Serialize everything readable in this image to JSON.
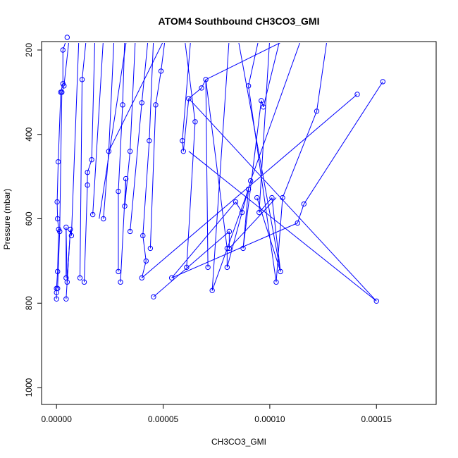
{
  "chart_data": {
    "type": "line",
    "title": "ATOM4 Southbound CH3CO3_GMI",
    "xlabel": "CH3CO3_GMI",
    "ylabel": "Pressure (mbar)",
    "xlim": [
      -7e-06,
      0.000178
    ],
    "ylim": [
      1040,
      180
    ],
    "y_reversed": true,
    "x_ticks": [
      0,
      5e-05,
      0.0001,
      0.00015
    ],
    "x_tick_labels": [
      "0.00000",
      "0.00005",
      "0.00010",
      "0.00015"
    ],
    "y_ticks": [
      200,
      400,
      600,
      800,
      1000
    ],
    "y_tick_labels": [
      "200",
      "400",
      "600",
      "800",
      "1000"
    ],
    "grid": false,
    "legend": "none",
    "series": [
      {
        "color": "#0000ff",
        "marker": "open-circle",
        "points": [
          [
            0.0,
            790
          ],
          [
            0.0,
            775
          ],
          [
            0.0,
            765
          ],
          [
            5e-07,
            725
          ],
          [
            1e-06,
            625
          ],
          [
            5e-07,
            600
          ],
          [
            3e-07,
            560
          ],
          [
            8e-07,
            465
          ],
          [
            2e-06,
            300
          ],
          [
            3e-06,
            280
          ],
          [
            3e-06,
            200
          ],
          [
            5e-06,
            170
          ],
          [
            5e-07,
            765
          ],
          [
            1.5e-06,
            630
          ],
          [
            2.5e-06,
            300
          ],
          [
            3.5e-06,
            285
          ],
          [
            4.5e-06,
            740
          ],
          [
            4.5e-06,
            790
          ],
          [
            4.5e-06,
            620
          ],
          [
            5e-06,
            750
          ],
          [
            6.5e-06,
            625
          ],
          [
            7e-06,
            640
          ],
          [
            1.2e-05,
            270
          ],
          [
            1.1e-05,
            740
          ],
          [
            1.3e-05,
            750
          ],
          [
            1.45e-05,
            490
          ],
          [
            1.45e-05,
            520
          ],
          [
            1.65e-05,
            460
          ],
          [
            1.7e-05,
            590
          ],
          [
            2.2e-05,
            600
          ],
          [
            2.45e-05,
            440
          ],
          [
            3.1e-05,
            330
          ],
          [
            2.9e-05,
            535
          ],
          [
            2.9e-05,
            725
          ],
          [
            3e-05,
            750
          ],
          [
            3.25e-05,
            505
          ],
          [
            3.2e-05,
            570
          ],
          [
            3.45e-05,
            440
          ],
          [
            3.45e-05,
            630
          ],
          [
            4e-05,
            740
          ],
          [
            4.05e-05,
            640
          ],
          [
            4e-05,
            325
          ],
          [
            4.2e-05,
            700
          ],
          [
            4.35e-05,
            415
          ],
          [
            4.4e-05,
            670
          ],
          [
            4.65e-05,
            330
          ],
          [
            4.55e-05,
            785
          ],
          [
            4.9e-05,
            250
          ],
          [
            5.4e-05,
            740
          ],
          [
            5.95e-05,
            440
          ],
          [
            5.9e-05,
            415
          ],
          [
            6.1e-05,
            715
          ],
          [
            6.2e-05,
            315
          ],
          [
            6.5e-05,
            370
          ],
          [
            6.8e-05,
            290
          ],
          [
            7e-05,
            270
          ],
          [
            7.1e-05,
            715
          ],
          [
            7.3e-05,
            770
          ],
          [
            8e-05,
            670
          ],
          [
            8e-05,
            715
          ],
          [
            8.1e-05,
            630
          ],
          [
            8.1e-05,
            670
          ],
          [
            8.4e-05,
            560
          ],
          [
            8.7e-05,
            585
          ],
          [
            8.75e-05,
            670
          ],
          [
            9e-05,
            285
          ],
          [
            9e-05,
            530
          ],
          [
            9.1e-05,
            510
          ],
          [
            9.4e-05,
            550
          ],
          [
            9.5e-05,
            585
          ],
          [
            9.6e-05,
            320
          ],
          [
            9.7e-05,
            335
          ],
          [
            0.000101,
            550
          ],
          [
            0.000103,
            750
          ],
          [
            0.000105,
            725
          ],
          [
            0.000106,
            550
          ],
          [
            0.000113,
            610
          ],
          [
            0.000116,
            565
          ],
          [
            0.000122,
            345
          ],
          [
            0.000141,
            305
          ],
          [
            0.00015,
            795
          ],
          [
            0.000153,
            275
          ]
        ],
        "segments": [
          [
            0.0,
            790,
            0.0,
            775
          ],
          [
            0.0,
            775,
            0.0,
            765
          ],
          [
            0.0,
            765,
            5e-07,
            725
          ],
          [
            5e-07,
            725,
            1e-06,
            625
          ],
          [
            1e-06,
            625,
            5e-07,
            600
          ],
          [
            5e-07,
            600,
            3e-07,
            560
          ],
          [
            3e-07,
            560,
            8e-07,
            465
          ],
          [
            8e-07,
            465,
            2e-06,
            300
          ],
          [
            2e-06,
            300,
            3e-06,
            280
          ],
          [
            3e-06,
            280,
            3e-06,
            200
          ],
          [
            3e-06,
            200,
            5e-06,
            170
          ],
          [
            5e-07,
            765,
            1.5e-06,
            630
          ],
          [
            1.5e-06,
            630,
            2.5e-06,
            300
          ],
          [
            2.5e-06,
            300,
            3.5e-06,
            285
          ],
          [
            3.5e-06,
            285,
            6e-06,
            170
          ],
          [
            4.5e-06,
            740,
            4.5e-06,
            620
          ],
          [
            4.5e-06,
            620,
            5e-06,
            750
          ],
          [
            5e-06,
            750,
            6.5e-06,
            625
          ],
          [
            6.5e-06,
            625,
            7e-06,
            640
          ],
          [
            4.5e-06,
            790,
            6.5e-06,
            625
          ],
          [
            7e-06,
            640,
            1.05e-05,
            170
          ],
          [
            1.1e-05,
            740,
            1.2e-05,
            270
          ],
          [
            1.2e-05,
            270,
            1.4e-05,
            170
          ],
          [
            1.3e-05,
            750,
            1.45e-05,
            520
          ],
          [
            1.45e-05,
            520,
            1.45e-05,
            490
          ],
          [
            1.45e-05,
            490,
            1.65e-05,
            460
          ],
          [
            1.65e-05,
            460,
            1.8e-05,
            170
          ],
          [
            1.7e-05,
            590,
            2.2e-05,
            170
          ],
          [
            2.2e-05,
            600,
            2.45e-05,
            440
          ],
          [
            2.45e-05,
            440,
            2.7e-05,
            170
          ],
          [
            2.9e-05,
            725,
            2.9e-05,
            535
          ],
          [
            2.9e-05,
            535,
            3.1e-05,
            330
          ],
          [
            3.1e-05,
            330,
            3.2e-05,
            170
          ],
          [
            3e-05,
            750,
            3.25e-05,
            505
          ],
          [
            3.25e-05,
            505,
            3.2e-05,
            570
          ],
          [
            3.2e-05,
            570,
            3.45e-05,
            440
          ],
          [
            3.45e-05,
            440,
            3.7e-05,
            170
          ],
          [
            3.45e-05,
            630,
            4e-05,
            325
          ],
          [
            4e-05,
            325,
            4.3e-05,
            170
          ],
          [
            4e-05,
            740,
            4.2e-05,
            700
          ],
          [
            4.2e-05,
            700,
            4.05e-05,
            640
          ],
          [
            4.05e-05,
            640,
            4.35e-05,
            415
          ],
          [
            4.35e-05,
            415,
            4.55e-05,
            170
          ],
          [
            4.4e-05,
            670,
            4.65e-05,
            330
          ],
          [
            4.65e-05,
            330,
            4.9e-05,
            250
          ],
          [
            4.9e-05,
            250,
            5.1e-05,
            170
          ],
          [
            2.45e-05,
            440,
            5.1e-05,
            170
          ],
          [
            4.55e-05,
            785,
            8.1e-05,
            630
          ],
          [
            8.1e-05,
            630,
            8.1e-05,
            670
          ],
          [
            5.4e-05,
            740,
            8.4e-05,
            560
          ],
          [
            8.4e-05,
            560,
            8.7e-05,
            585
          ],
          [
            5.9e-05,
            415,
            5.95e-05,
            440
          ],
          [
            5.95e-05,
            440,
            6.2e-05,
            315
          ],
          [
            6.2e-05,
            315,
            6.8e-05,
            290
          ],
          [
            6.8e-05,
            290,
            7e-05,
            270
          ],
          [
            7e-05,
            270,
            0.00011,
            170
          ],
          [
            5.9e-05,
            415,
            6.3e-05,
            170
          ],
          [
            6.1e-05,
            715,
            6.5e-05,
            370
          ],
          [
            6.5e-05,
            370,
            6e-05,
            170
          ],
          [
            7.1e-05,
            715,
            7e-05,
            270
          ],
          [
            7e-05,
            270,
            8e-05,
            670
          ],
          [
            8e-05,
            670,
            8e-05,
            715
          ],
          [
            8e-05,
            715,
            9.1e-05,
            510
          ],
          [
            9.1e-05,
            510,
            0.000115,
            170
          ],
          [
            7.3e-05,
            770,
            9e-05,
            530
          ],
          [
            9e-05,
            530,
            8.75e-05,
            670
          ],
          [
            8.75e-05,
            670,
            9.6e-05,
            320
          ],
          [
            9.6e-05,
            320,
            9.7e-05,
            335
          ],
          [
            9.7e-05,
            335,
            0.000105,
            170
          ],
          [
            7.3e-05,
            770,
            8.1e-05,
            170
          ],
          [
            9e-05,
            285,
            0.000103,
            750
          ],
          [
            0.000103,
            750,
            0.000106,
            550
          ],
          [
            0.000106,
            550,
            0.000122,
            345
          ],
          [
            0.000122,
            345,
            0.000127,
            170
          ],
          [
            9e-05,
            285,
            9.5e-05,
            170
          ],
          [
            9.4e-05,
            550,
            0.000105,
            725
          ],
          [
            0.000105,
            725,
            0.000101,
            550
          ],
          [
            0.000101,
            550,
            9.5e-05,
            585
          ],
          [
            9.5e-05,
            585,
            0.0001,
            170
          ],
          [
            8.5e-05,
            170,
            0.000105,
            725
          ],
          [
            0.000113,
            610,
            0.000116,
            565
          ],
          [
            0.000116,
            565,
            0.000153,
            275
          ],
          [
            4e-05,
            740,
            0.000141,
            305
          ],
          [
            5.4e-05,
            740,
            0.000113,
            610
          ],
          [
            6.2e-05,
            440,
            0.00015,
            795
          ],
          [
            6.2e-05,
            315,
            0.00015,
            795
          ],
          [
            8.1e-05,
            670,
            0.000103,
            550
          ],
          [
            3.3e-05,
            170,
            2e-05,
            600
          ]
        ]
      }
    ]
  }
}
